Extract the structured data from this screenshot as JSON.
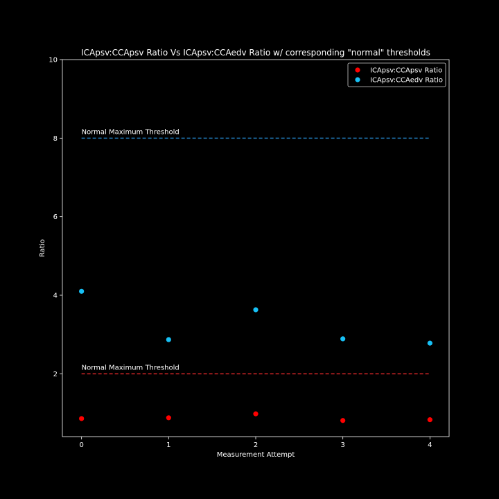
{
  "chart_data": {
    "type": "scatter",
    "title": "ICApsv:CCApsv Ratio Vs ICApsv:CCAedv Ratio w/ corresponding \"normal\" thresholds",
    "xlabel": "Measurement Attempt",
    "ylabel": "Ratio",
    "xlim": [
      -0.22,
      4.22
    ],
    "ylim": [
      0.4,
      10
    ],
    "xticks": [
      0,
      1,
      2,
      3,
      4
    ],
    "yticks": [
      2,
      4,
      6,
      8,
      10
    ],
    "legend_position": "top-right",
    "background": "#000000",
    "series": [
      {
        "name": "ICApsv:CCApsv Ratio",
        "color": "#ff0000",
        "x": [
          0,
          1,
          2,
          3,
          4
        ],
        "y": [
          0.86,
          0.88,
          0.98,
          0.81,
          0.83
        ]
      },
      {
        "name": "ICApsv:CCAedv Ratio",
        "color": "#17c0f5",
        "x": [
          0,
          1,
          2,
          3,
          4
        ],
        "y": [
          4.1,
          2.87,
          3.63,
          2.89,
          2.78
        ]
      }
    ],
    "thresholds": [
      {
        "label": "Normal Maximum Threshold",
        "y": 8,
        "x_range": [
          0,
          4
        ],
        "color": "#1f77b4",
        "style": "dashed"
      },
      {
        "label": "Normal Maximum Threshold",
        "y": 2,
        "x_range": [
          0,
          4
        ],
        "color": "#d62728",
        "style": "dashed"
      }
    ]
  }
}
